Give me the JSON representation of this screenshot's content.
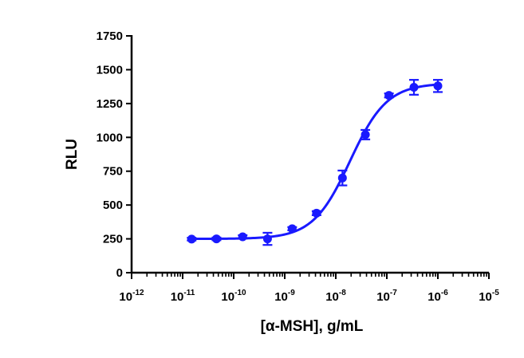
{
  "chart_data": {
    "type": "scatter",
    "xlabel": "[α-MSH], g/mL",
    "ylabel": "RLU",
    "xscale": "log",
    "xlim": [
      1e-12,
      1e-05
    ],
    "ylim": [
      0,
      1750
    ],
    "x_ticks": [
      {
        "base": "10",
        "exp": "-12"
      },
      {
        "base": "10",
        "exp": "-11"
      },
      {
        "base": "10",
        "exp": "-10"
      },
      {
        "base": "10",
        "exp": "-9"
      },
      {
        "base": "10",
        "exp": "-8"
      },
      {
        "base": "10",
        "exp": "-7"
      },
      {
        "base": "10",
        "exp": "-6"
      },
      {
        "base": "10",
        "exp": "-5"
      }
    ],
    "y_ticks": [
      "0",
      "250",
      "500",
      "750",
      "1000",
      "1250",
      "1500",
      "1750"
    ],
    "series": [
      {
        "color": "#1a1aff",
        "marker": "circle",
        "points": [
          {
            "x": 1.5e-11,
            "y": 248,
            "err": 10
          },
          {
            "x": 4.6e-11,
            "y": 250,
            "err": 10
          },
          {
            "x": 1.5e-10,
            "y": 265,
            "err": 12
          },
          {
            "x": 4.6e-10,
            "y": 250,
            "err": 45
          },
          {
            "x": 1.4e-09,
            "y": 325,
            "err": 12
          },
          {
            "x": 4.2e-09,
            "y": 440,
            "err": 15
          },
          {
            "x": 1.35e-08,
            "y": 700,
            "err": 55
          },
          {
            "x": 3.8e-08,
            "y": 1020,
            "err": 35
          },
          {
            "x": 1.1e-07,
            "y": 1310,
            "err": 15
          },
          {
            "x": 3.4e-07,
            "y": 1370,
            "err": 55
          },
          {
            "x": 1e-06,
            "y": 1380,
            "err": 45
          }
        ],
        "fit": {
          "model": "4PL",
          "bottom": 250,
          "top": 1400,
          "ec50": 1.9e-08,
          "hill": 1.2
        }
      }
    ],
    "grid": false,
    "legend": "none"
  }
}
